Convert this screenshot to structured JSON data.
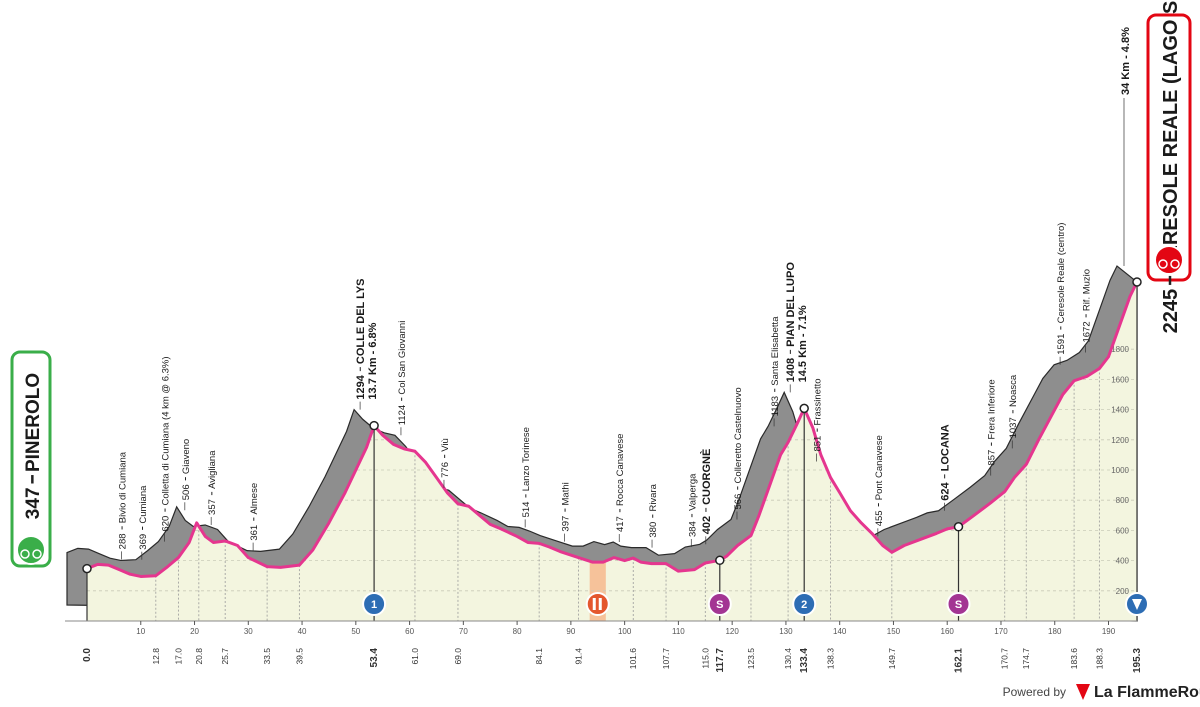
{
  "chart_data": {
    "type": "area",
    "x": [
      0,
      2,
      4,
      6,
      8,
      10,
      12.8,
      15,
      17,
      19,
      20.4,
      22,
      23.5,
      25.7,
      28,
      30,
      33.5,
      36,
      39.5,
      42,
      45,
      48,
      50,
      52,
      53.4,
      55,
      57,
      59,
      61,
      63,
      65,
      67,
      69,
      71,
      73,
      75,
      77,
      80,
      82,
      84.1,
      86,
      88,
      91.4,
      94,
      96,
      98,
      100,
      101.6,
      103,
      105,
      107.7,
      110,
      113,
      115,
      117.7,
      119,
      121,
      123.5,
      125,
      127,
      129,
      130.4,
      132,
      133.4,
      135,
      136.5,
      138.3,
      140,
      142,
      144,
      146,
      148,
      149.7,
      152,
      155,
      158,
      160,
      162.1,
      165,
      168,
      170.7,
      172.5,
      174.7,
      177,
      180,
      181.5,
      183.6,
      186,
      188.3,
      190,
      192,
      194,
      195.3
    ],
    "values": [
      347,
      375,
      370,
      340,
      310,
      295,
      300,
      360,
      420,
      520,
      650,
      560,
      520,
      530,
      500,
      420,
      360,
      355,
      370,
      470,
      650,
      850,
      1000,
      1150,
      1294,
      1230,
      1170,
      1140,
      1124,
      1050,
      950,
      850,
      776,
      760,
      700,
      640,
      610,
      560,
      520,
      514,
      490,
      460,
      420,
      390,
      390,
      420,
      400,
      417,
      390,
      380,
      380,
      330,
      340,
      384,
      402,
      430,
      500,
      566,
      700,
      900,
      1100,
      1183,
      1300,
      1408,
      1280,
      1100,
      950,
      850,
      730,
      650,
      580,
      500,
      455,
      500,
      540,
      580,
      610,
      624,
      700,
      780,
      857,
      950,
      1037,
      1200,
      1400,
      1500,
      1591,
      1620,
      1672,
      1750,
      1950,
      2150,
      2245
    ],
    "xlim": [
      0,
      195.3
    ],
    "ylim": [
      0,
      2245
    ],
    "xticks": [
      10,
      20,
      30,
      40,
      50,
      60,
      70,
      80,
      90,
      100,
      110,
      120,
      130,
      140,
      150,
      160,
      170,
      180,
      190
    ],
    "yticks": [
      200,
      400,
      600,
      800,
      1000,
      1200,
      1400,
      1600,
      1800
    ],
    "grid": true,
    "color": "#e5368f",
    "km_marks": [
      {
        "value": 0,
        "label": "0.0"
      },
      12.8,
      {
        "value": 17,
        "label": "17.0"
      },
      20.8,
      25.7,
      33.5,
      39.5,
      53.4,
      {
        "value": 61,
        "label": "61.0"
      },
      {
        "value": 69,
        "label": "69.0"
      },
      84.1,
      91.4,
      101.6,
      107.7,
      {
        "value": 115,
        "label": "115.0"
      },
      117.7,
      123.5,
      130.4,
      133.4,
      138.3,
      149.7,
      162.1,
      170.7,
      174.7,
      183.6,
      188.3,
      195.3
    ],
    "start": {
      "altitude": 347,
      "name": "PINEROLO"
    },
    "finish": {
      "altitude": 2245,
      "name": "CERESOLE REALE (LAGO SERRU')",
      "climb": "34 Km - 4.8%"
    },
    "waypoints": [
      {
        "km": 9,
        "altitude": 288,
        "name": "Bivio di Cumiana"
      },
      {
        "km": 12.8,
        "altitude": 369,
        "name": "Cumiana"
      },
      {
        "km": 17,
        "altitude": 620,
        "name": "Colletta di Cumiana (4 km @ 6.3%)"
      },
      {
        "km": 20.8,
        "altitude": 506,
        "name": "Giaveno"
      },
      {
        "km": 25.7,
        "altitude": 357,
        "name": "Avigliana"
      },
      {
        "km": 33.5,
        "altitude": 361,
        "name": "Almese"
      },
      {
        "km": 53.4,
        "altitude": 1294,
        "name": "COLLE DEL LYS",
        "climb": "13.7 Km - 6.8%",
        "bold": true
      },
      {
        "km": 61,
        "altitude": 1124,
        "name": "Col San Giovanni"
      },
      {
        "km": 69,
        "altitude": 776,
        "name": "Viù"
      },
      {
        "km": 84.1,
        "altitude": 514,
        "name": "Lanzo Torinese"
      },
      {
        "km": 91.4,
        "altitude": 397,
        "name": "Mathi"
      },
      {
        "km": 101.6,
        "altitude": 417,
        "name": "Rocca Canavese"
      },
      {
        "km": 107.7,
        "altitude": 380,
        "name": "Rivara"
      },
      {
        "km": 115,
        "altitude": 384,
        "name": "Valperga"
      },
      {
        "km": 117.7,
        "altitude": 402,
        "name": "CUORGNÈ",
        "bold": true
      },
      {
        "km": 123.5,
        "altitude": 566,
        "name": "Colleretto Castelnuovo"
      },
      {
        "km": 130.4,
        "altitude": 1183,
        "name": "Santa Elisabetta"
      },
      {
        "km": 133.4,
        "altitude": 1408,
        "name": "PIAN DEL LUPO",
        "climb": "14.5 Km - 7.1%",
        "bold": true
      },
      {
        "km": 138.3,
        "altitude": 851,
        "name": "Frassinetto"
      },
      {
        "km": 149.7,
        "altitude": 455,
        "name": "Pont Canavese"
      },
      {
        "km": 162.1,
        "altitude": 624,
        "name": "LOCANA",
        "bold": true
      },
      {
        "km": 170.7,
        "altitude": 857,
        "name": "Frera Inferiore"
      },
      {
        "km": 174.7,
        "altitude": 1037,
        "name": "Noasca"
      },
      {
        "km": 183.6,
        "altitude": 1591,
        "name": "Ceresole Reale (centro)"
      },
      {
        "km": 188.3,
        "altitude": 1672,
        "name": "Rif. Muzio"
      }
    ],
    "badges": [
      {
        "km": 53.4,
        "kind": "gpm",
        "label": "1"
      },
      {
        "km": 117.7,
        "kind": "sprint",
        "label": "S"
      },
      {
        "km": 133.4,
        "kind": "gpm",
        "label": "2"
      },
      {
        "km": 162.1,
        "kind": "sprint",
        "label": "S"
      }
    ],
    "feed_zone": [
      93.5,
      96.5
    ]
  },
  "footer": {
    "powered": "Powered by",
    "brand": "La FlammeRouge"
  }
}
